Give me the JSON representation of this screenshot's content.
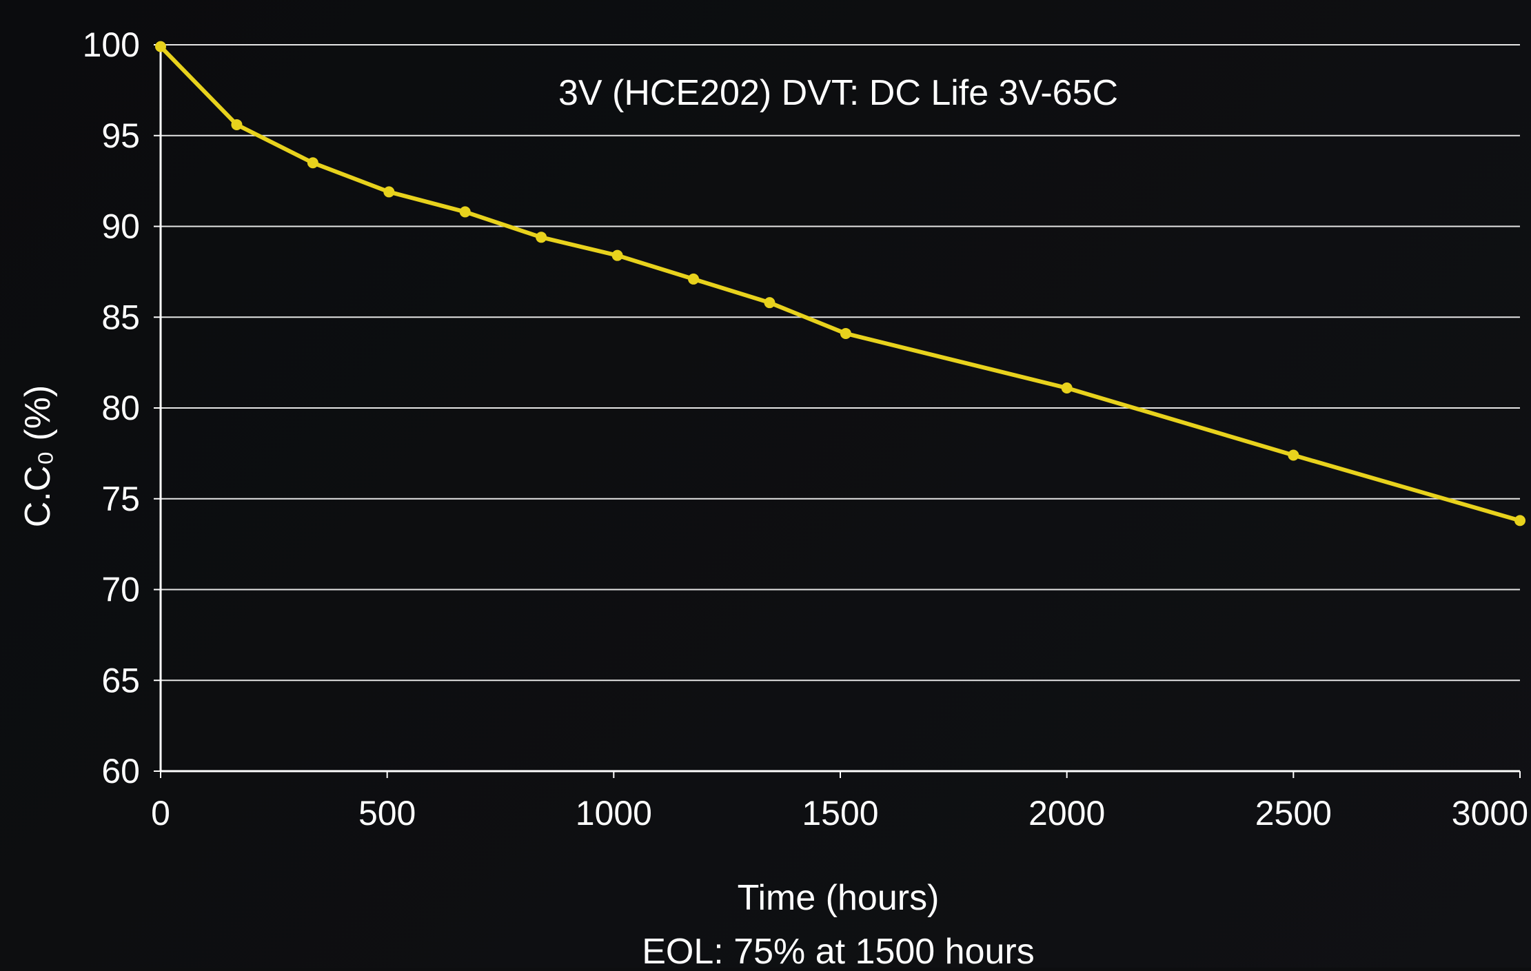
{
  "chart_data": {
    "type": "line",
    "title": "3V (HCE202) DVT: DC Life 3V-65C",
    "xlabel": "Time (hours)",
    "ylabel": "C.C₀ (%)",
    "note": "EOL: 75% at 1500 hours",
    "xlim": [
      0,
      3000
    ],
    "ylim": [
      60,
      100
    ],
    "x_ticks": [
      0,
      500,
      1000,
      1500,
      2000,
      2500,
      3000
    ],
    "y_ticks": [
      60,
      65,
      70,
      75,
      80,
      85,
      90,
      95,
      100
    ],
    "grid": true,
    "series": [
      {
        "color": "#e8d21d",
        "x": [
          0,
          168,
          336,
          504,
          672,
          840,
          1008,
          1176,
          1344,
          1512,
          2000,
          2500,
          3000
        ],
        "y": [
          99.9,
          95.6,
          93.5,
          91.9,
          90.8,
          89.4,
          88.4,
          87.1,
          85.8,
          84.1,
          81.1,
          77.4,
          73.8
        ]
      }
    ],
    "colors": {
      "background": "#0d0e10",
      "grid": "#e6e6e6",
      "axis": "#ffffff",
      "text": "#ffffff",
      "line": "#e8d21d"
    }
  }
}
